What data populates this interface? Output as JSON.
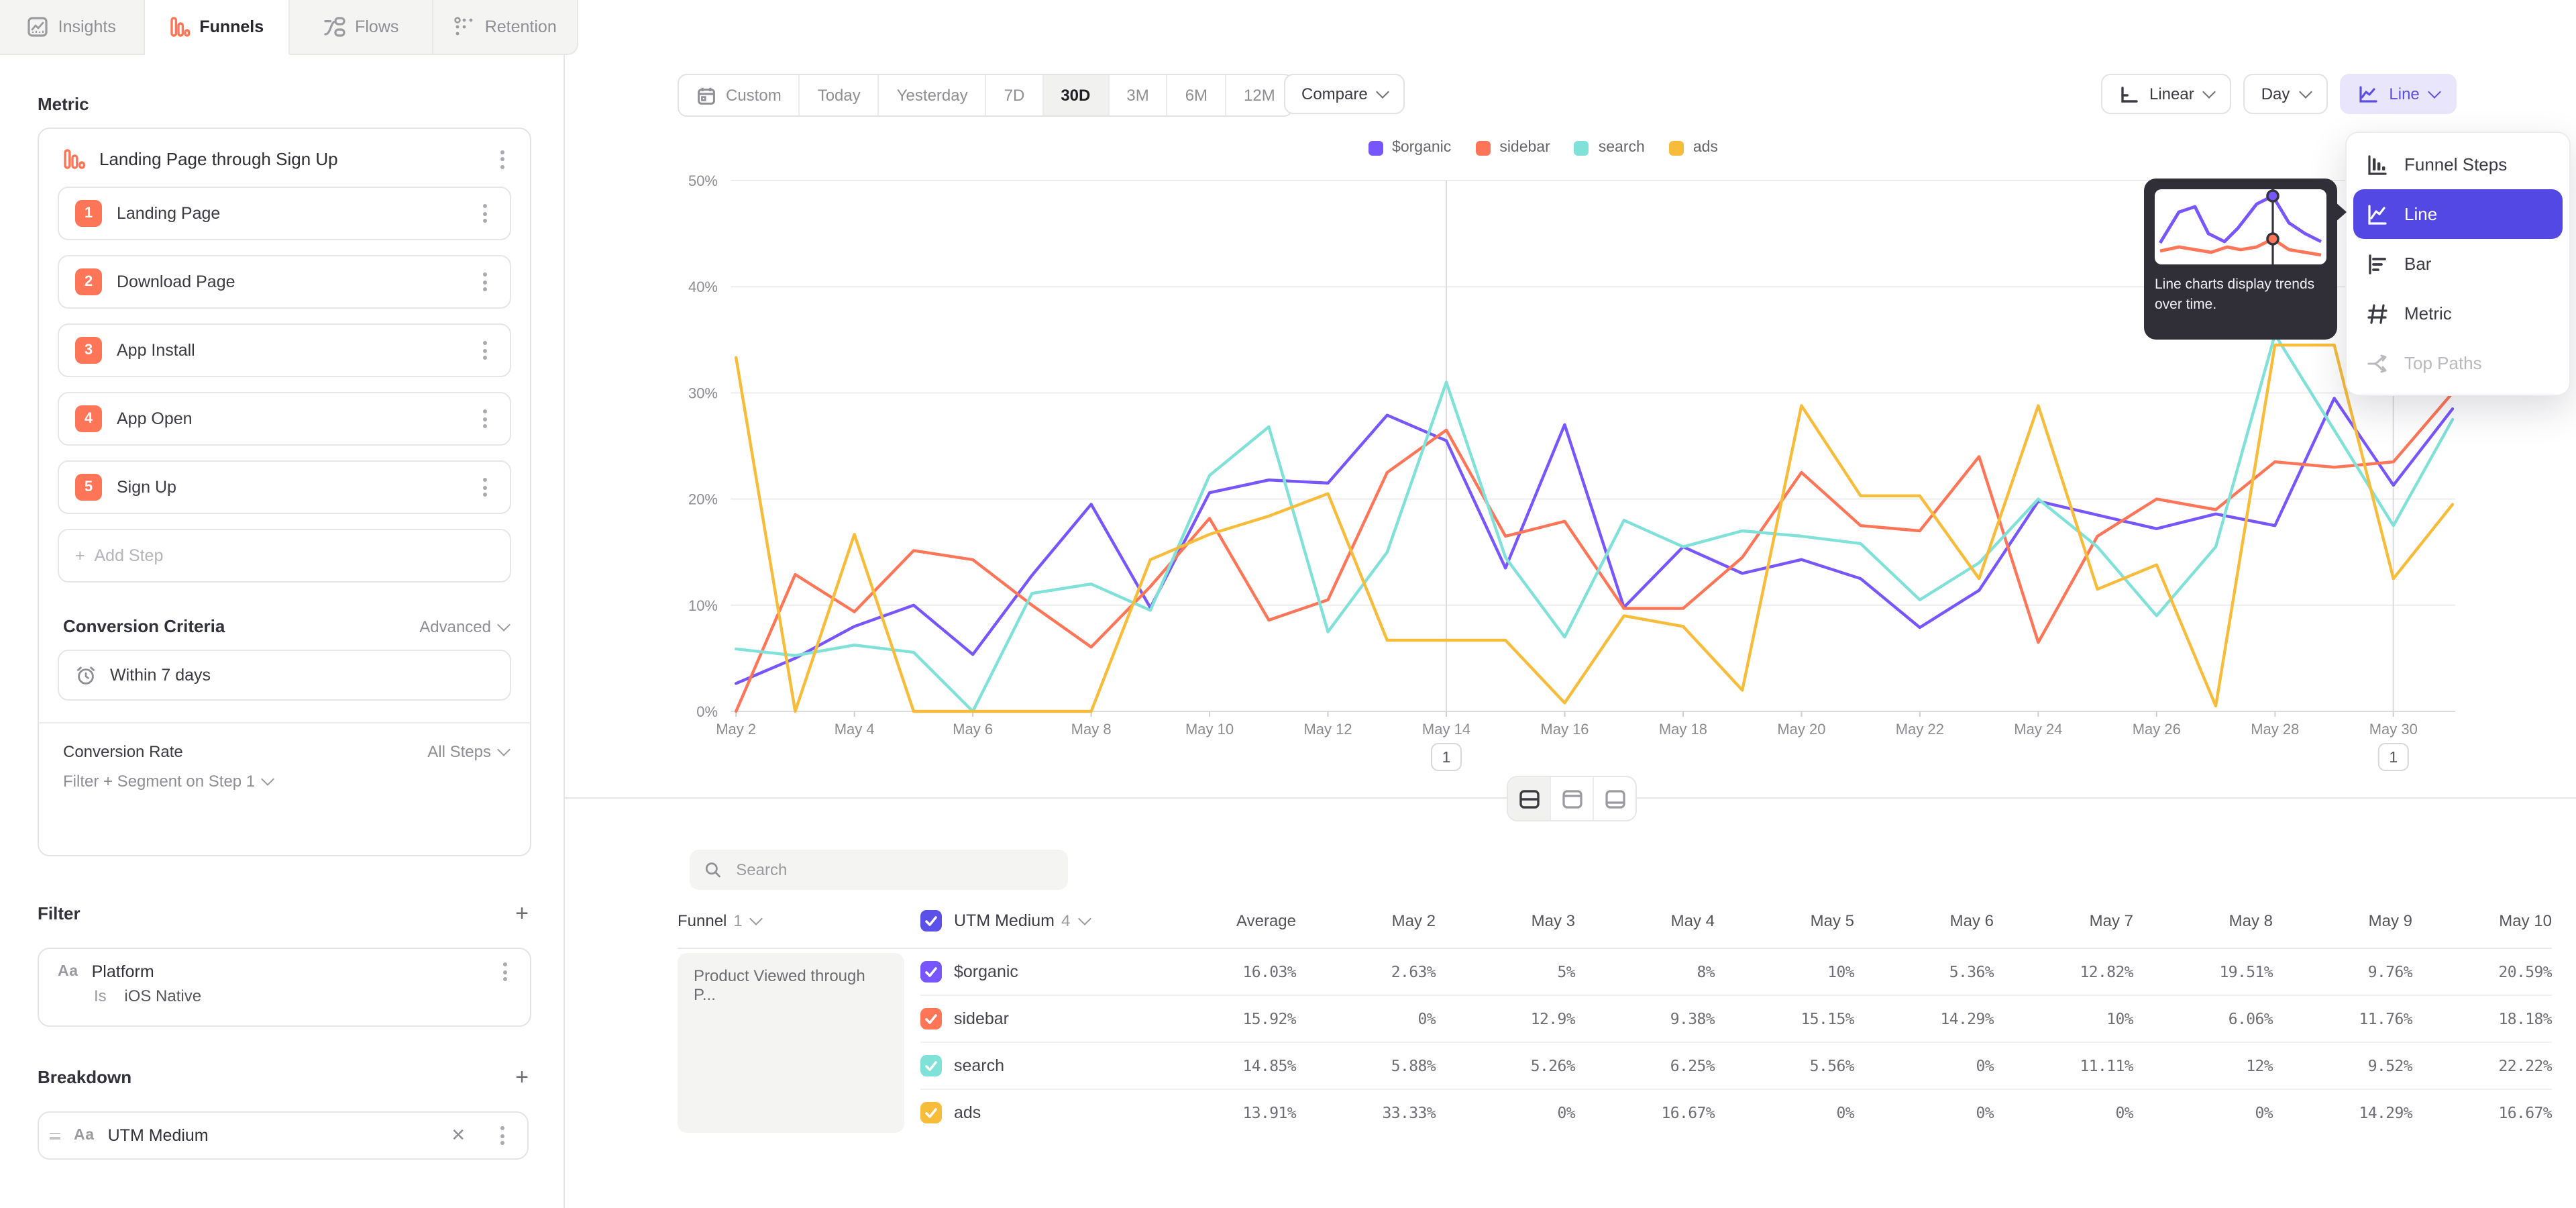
{
  "colors": {
    "organic": "#7856ff",
    "sidebar": "#ff7557",
    "search": "#80e1d9",
    "ads": "#f8bc3b",
    "accent": "#5348e3",
    "accent_light": "#e9e6fc",
    "tooltip_bg": "#302f38"
  },
  "tabs": [
    {
      "label": "Insights",
      "icon": "insights-icon",
      "active": false
    },
    {
      "label": "Funnels",
      "icon": "funnels-icon",
      "active": true
    },
    {
      "label": "Flows",
      "icon": "flows-icon",
      "active": false
    },
    {
      "label": "Retention",
      "icon": "retention-icon",
      "active": false
    }
  ],
  "sidebar": {
    "metric_label": "Metric",
    "funnel": {
      "title": "Landing Page through Sign Up",
      "steps": [
        {
          "num": "1",
          "label": "Landing Page"
        },
        {
          "num": "2",
          "label": "Download Page"
        },
        {
          "num": "3",
          "label": "App Install"
        },
        {
          "num": "4",
          "label": "App Open"
        },
        {
          "num": "5",
          "label": "Sign Up"
        }
      ],
      "add_step": "Add Step"
    },
    "conversion_criteria": {
      "label": "Conversion Criteria",
      "advanced": "Advanced",
      "window": "Within 7 days"
    },
    "footer": {
      "conversion_rate_label": "Conversion Rate",
      "conversion_rate_value": "All Steps",
      "filter_segment": "Filter + Segment on Step 1"
    },
    "filter": {
      "label": "Filter",
      "type_icon": "Aa",
      "property": "Platform",
      "operator": "Is",
      "value": "iOS Native"
    },
    "breakdown": {
      "label": "Breakdown",
      "type_icon": "Aa",
      "property": "UTM Medium"
    }
  },
  "toolbar": {
    "ranges": [
      "Custom",
      "Today",
      "Yesterday",
      "7D",
      "30D",
      "3M",
      "6M",
      "12M"
    ],
    "active_range": "30D",
    "compare": "Compare",
    "scale": "Linear",
    "interval": "Day",
    "chart_type": "Line"
  },
  "chart_menu": {
    "items": [
      {
        "label": "Funnel Steps",
        "icon": "funnel-steps-icon",
        "state": "normal"
      },
      {
        "label": "Line",
        "icon": "line-chart-icon",
        "state": "selected"
      },
      {
        "label": "Bar",
        "icon": "bar-chart-icon",
        "state": "normal"
      },
      {
        "label": "Metric",
        "icon": "metric-icon",
        "state": "normal"
      },
      {
        "label": "Top Paths",
        "icon": "top-paths-icon",
        "state": "disabled"
      }
    ],
    "tooltip_text": "Line charts display trends over time."
  },
  "chart_data": {
    "type": "line",
    "title": "",
    "xlabel": "",
    "ylabel": "",
    "ylim": [
      0,
      50
    ],
    "yticks": [
      0,
      10,
      20,
      30,
      40,
      50
    ],
    "ytick_labels": [
      "0%",
      "10%",
      "20%",
      "30%",
      "40%",
      "50%"
    ],
    "grid": true,
    "legend_position": "top",
    "x": [
      "May 2",
      "May 3",
      "May 4",
      "May 5",
      "May 6",
      "May 7",
      "May 8",
      "May 9",
      "May 10",
      "May 11",
      "May 12",
      "May 13",
      "May 14",
      "May 15",
      "May 16",
      "May 17",
      "May 18",
      "May 19",
      "May 20",
      "May 21",
      "May 22",
      "May 23",
      "May 24",
      "May 25",
      "May 26",
      "May 27",
      "May 28",
      "May 29",
      "May 30",
      "May 31"
    ],
    "xtick_labels": [
      "May 2",
      "May 4",
      "May 6",
      "May 8",
      "May 10",
      "May 12",
      "May 14",
      "May 16",
      "May 18",
      "May 20",
      "May 22",
      "May 24",
      "May 26",
      "May 28",
      "May 30"
    ],
    "series": [
      {
        "name": "$organic",
        "color": "#7856ff",
        "values": [
          2.63,
          5,
          8,
          10,
          5.36,
          12.82,
          19.51,
          9.76,
          20.59,
          21.8,
          21.5,
          27.9,
          25.5,
          13.5,
          27,
          9.8,
          15.5,
          13,
          14.3,
          12.5,
          7.9,
          11.4,
          19.8,
          18.5,
          17.2,
          18.6,
          17.5,
          29.5,
          21.3,
          28.5
        ]
      },
      {
        "name": "sidebar",
        "color": "#ff7557",
        "values": [
          0,
          12.9,
          9.38,
          15.15,
          14.29,
          10,
          6.06,
          11.76,
          18.18,
          8.6,
          10.5,
          22.5,
          26.5,
          16.5,
          17.9,
          9.7,
          9.7,
          14.5,
          22.5,
          17.5,
          17,
          24,
          6.5,
          16.5,
          20,
          19,
          23.5,
          23,
          23.5,
          30
        ]
      },
      {
        "name": "search",
        "color": "#80e1d9",
        "values": [
          5.88,
          5.26,
          6.25,
          5.56,
          0,
          11.11,
          12,
          9.52,
          22.22,
          26.8,
          7.5,
          15,
          31,
          14.5,
          7,
          18,
          15.5,
          17,
          16.5,
          15.8,
          10.5,
          14,
          20,
          15.5,
          9,
          15.5,
          35.5,
          26.5,
          17.5,
          27.5
        ]
      },
      {
        "name": "ads",
        "color": "#f8bc3b",
        "values": [
          33.33,
          0,
          16.67,
          0,
          0,
          0,
          0,
          14.29,
          16.67,
          18.4,
          20.5,
          6.7,
          6.7,
          6.7,
          0.8,
          9,
          8,
          2,
          28.8,
          20.3,
          20.3,
          12.5,
          28.8,
          11.5,
          13.8,
          0.5,
          34.5,
          34.5,
          12.5,
          19.5
        ]
      }
    ],
    "annotations": [
      {
        "x_index": 12,
        "label": "1"
      },
      {
        "x_index": 28,
        "label": "1"
      }
    ]
  },
  "table": {
    "search_placeholder": "Search",
    "funnel_header": {
      "label": "Funnel",
      "count": "1"
    },
    "breakdown_header": {
      "label": "UTM Medium",
      "count": "4"
    },
    "funnel_name": "Product Viewed through P...",
    "columns": [
      "Average",
      "May 2",
      "May 3",
      "May 4",
      "May 5",
      "May 6",
      "May 7",
      "May 8",
      "May 9",
      "May 10"
    ],
    "rows": [
      {
        "name": "$organic",
        "color": "#7856ff",
        "average": "16.03%",
        "values": [
          "2.63%",
          "5%",
          "8%",
          "10%",
          "5.36%",
          "12.82%",
          "19.51%",
          "9.76%",
          "20.59%"
        ]
      },
      {
        "name": "sidebar",
        "color": "#ff7557",
        "average": "15.92%",
        "values": [
          "0%",
          "12.9%",
          "9.38%",
          "15.15%",
          "14.29%",
          "10%",
          "6.06%",
          "11.76%",
          "18.18%"
        ]
      },
      {
        "name": "search",
        "color": "#80e1d9",
        "average": "14.85%",
        "values": [
          "5.88%",
          "5.26%",
          "6.25%",
          "5.56%",
          "0%",
          "11.11%",
          "12%",
          "9.52%",
          "22.22%"
        ]
      },
      {
        "name": "ads",
        "color": "#f8bc3b",
        "average": "13.91%",
        "values": [
          "33.33%",
          "0%",
          "16.67%",
          "0%",
          "0%",
          "0%",
          "0%",
          "14.29%",
          "16.67%"
        ]
      }
    ]
  }
}
